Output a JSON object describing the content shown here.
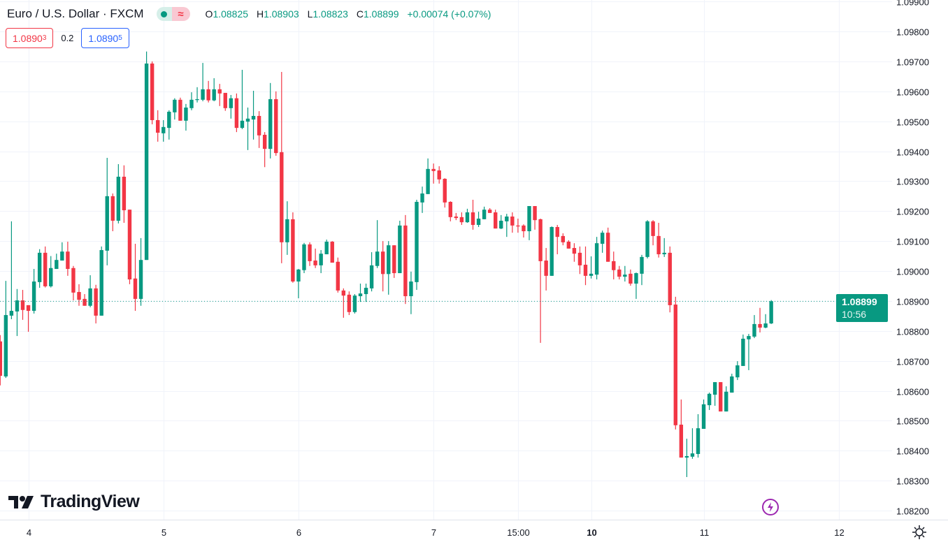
{
  "header": {
    "symbol_title": "Euro / U.S. Dollar · FXCM",
    "market_status": "open",
    "status_icon_2": "≈",
    "ohlc": {
      "o_label": "O",
      "o": "1.08825",
      "h_label": "H",
      "h": "1.08903",
      "l_label": "L",
      "l": "1.08823",
      "c_label": "C",
      "c": "1.08899",
      "change": "+0.00074 (+0.07%)"
    }
  },
  "trade": {
    "sell_main": "1.0890",
    "sell_sup": "3",
    "spread": "0.2",
    "buy_main": "1.0890",
    "buy_sup": "5"
  },
  "price_tag": {
    "price": "1.08899",
    "countdown": "10:56"
  },
  "logo_text": "TradingView",
  "colors": {
    "up": "#089981",
    "down": "#F23645",
    "grid": "#f0f3fa",
    "axis_text": "#131722",
    "buy": "#2962FF",
    "sell": "#F23645",
    "bolt": "#9c27b0"
  },
  "icons": {
    "settings": "gear-icon",
    "lightning": "lightning-icon"
  },
  "chart_data": {
    "type": "candlestick",
    "title": "Euro / U.S. Dollar · FXCM",
    "interval": "1 hour",
    "ylim": [
      1.0817,
      1.0991
    ],
    "y_ticks": [
      "1.08200",
      "1.08300",
      "1.08400",
      "1.08500",
      "1.08600",
      "1.08700",
      "1.08800",
      "1.08900",
      "1.09000",
      "1.09100",
      "1.09200",
      "1.09300",
      "1.09400",
      "1.09500",
      "1.09600",
      "1.09700",
      "1.09800",
      "1.09900"
    ],
    "x_ticks": [
      {
        "label": "4",
        "candle_index": 5,
        "bold": false
      },
      {
        "label": "5",
        "candle_index": 29,
        "bold": false
      },
      {
        "label": "6",
        "candle_index": 53,
        "bold": false
      },
      {
        "label": "7",
        "candle_index": 77,
        "bold": false
      },
      {
        "label": "15:00",
        "candle_index": 92,
        "bold": false
      },
      {
        "label": "10",
        "candle_index": 105,
        "bold": true
      },
      {
        "label": "11",
        "candle_index": 125,
        "bold": false
      },
      {
        "label": "12",
        "candle_index": 149,
        "bold": false
      }
    ],
    "last_price": 1.08899,
    "candles_ohlc": [
      [
        1.08765,
        1.08786,
        1.08618,
        1.0865
      ],
      [
        1.08648,
        1.08967,
        1.08643,
        1.08853
      ],
      [
        1.08851,
        1.09166,
        1.08839,
        1.08867
      ],
      [
        1.08865,
        1.0894,
        1.08783,
        1.08902
      ],
      [
        1.08902,
        1.08937,
        1.08837,
        1.0887
      ],
      [
        1.08886,
        1.08886,
        1.08797,
        1.08867
      ],
      [
        1.08867,
        1.09007,
        1.08858,
        1.08965
      ],
      [
        1.08963,
        1.09073,
        1.08944,
        1.09061
      ],
      [
        1.09061,
        1.09082,
        1.08945,
        1.08949
      ],
      [
        1.08949,
        1.0905,
        1.08945,
        1.0901
      ],
      [
        1.09007,
        1.09058,
        1.09007,
        1.09037
      ],
      [
        1.09035,
        1.09096,
        1.09035,
        1.09065
      ],
      [
        1.09065,
        1.09098,
        1.08984,
        1.09007
      ],
      [
        1.0901,
        1.09017,
        1.08902,
        1.08928
      ],
      [
        1.0893,
        1.08956,
        1.08884,
        1.08904
      ],
      [
        1.08907,
        1.08923,
        1.08884,
        1.08884
      ],
      [
        1.08884,
        1.08986,
        1.08879,
        1.08942
      ],
      [
        1.08942,
        1.08954,
        1.08825,
        1.08851
      ],
      [
        1.08851,
        1.09082,
        1.08851,
        1.0907
      ],
      [
        1.09068,
        1.09378,
        1.09019,
        1.0925
      ],
      [
        1.0925,
        1.09259,
        1.09133,
        1.09168
      ],
      [
        1.09168,
        1.09357,
        1.09159,
        1.09315
      ],
      [
        1.09315,
        1.09353,
        1.09161,
        1.09203
      ],
      [
        1.09205,
        1.09205,
        1.08956,
        1.08972
      ],
      [
        1.08975,
        1.09091,
        1.08867,
        1.08907
      ],
      [
        1.08907,
        1.0911,
        1.08884,
        1.09037
      ],
      [
        1.09037,
        1.09733,
        1.09037,
        1.09693
      ],
      [
        1.09693,
        1.097,
        1.0949,
        1.09504
      ],
      [
        1.09504,
        1.09537,
        1.09432,
        1.09462
      ],
      [
        1.0946,
        1.09504,
        1.09432,
        1.09481
      ],
      [
        1.09478,
        1.09537,
        1.09439,
        1.09532
      ],
      [
        1.0953,
        1.09577,
        1.09506,
        1.09572
      ],
      [
        1.09572,
        1.09579,
        1.09502,
        1.09502
      ],
      [
        1.09502,
        1.09558,
        1.09469,
        1.09546
      ],
      [
        1.09544,
        1.09597,
        1.09537,
        1.09572
      ],
      [
        1.09571,
        1.09614,
        1.09563,
        1.09574
      ],
      [
        1.09572,
        1.09695,
        1.09567,
        1.09607
      ],
      [
        1.09607,
        1.09635,
        1.09563,
        1.0957
      ],
      [
        1.0957,
        1.09644,
        1.09567,
        1.09607
      ],
      [
        1.09607,
        1.09625,
        1.09551,
        1.09593
      ],
      [
        1.09595,
        1.09595,
        1.09535,
        1.09544
      ],
      [
        1.09544,
        1.09588,
        1.09509,
        1.09577
      ],
      [
        1.09577,
        1.09593,
        1.09464,
        1.09478
      ],
      [
        1.09478,
        1.09672,
        1.09474,
        1.09502
      ],
      [
        1.09499,
        1.09546,
        1.09404,
        1.09509
      ],
      [
        1.09506,
        1.09602,
        1.09439,
        1.09518
      ],
      [
        1.09518,
        1.09534,
        1.09411,
        1.09453
      ],
      [
        1.09455,
        1.09464,
        1.09347,
        1.09408
      ],
      [
        1.09408,
        1.09628,
        1.09376,
        1.09574
      ],
      [
        1.09574,
        1.096,
        1.09385,
        1.09394
      ],
      [
        1.09397,
        1.09665,
        1.09026,
        1.09096
      ],
      [
        1.09096,
        1.09233,
        1.09054,
        1.09173
      ],
      [
        1.09173,
        1.09196,
        1.08961,
        1.08965
      ],
      [
        1.08965,
        1.09007,
        1.08909,
        1.09005
      ],
      [
        1.09003,
        1.09094,
        1.08993,
        1.09089
      ],
      [
        1.09089,
        1.09096,
        1.09017,
        1.09033
      ],
      [
        1.09035,
        1.09075,
        1.0901,
        1.09019
      ],
      [
        1.09019,
        1.0907,
        1.08993,
        1.09058
      ],
      [
        1.09056,
        1.09105,
        1.09056,
        1.09098
      ],
      [
        1.09098,
        1.091,
        1.09028,
        1.09028
      ],
      [
        1.09031,
        1.09045,
        1.08928,
        1.08935
      ],
      [
        1.08935,
        1.08942,
        1.08844,
        1.08918
      ],
      [
        1.08921,
        1.08932,
        1.08853,
        1.08863
      ],
      [
        1.08863,
        1.08923,
        1.08858,
        1.08918
      ],
      [
        1.08916,
        1.08958,
        1.08897,
        1.08925
      ],
      [
        1.08923,
        1.08958,
        1.08897,
        1.08944
      ],
      [
        1.08942,
        1.09063,
        1.08932,
        1.09019
      ],
      [
        1.09017,
        1.0917,
        1.0901,
        1.09065
      ],
      [
        1.09065,
        1.091,
        1.08932,
        1.0899
      ],
      [
        1.0899,
        1.091,
        1.08921,
        1.09086
      ],
      [
        1.09086,
        1.09086,
        1.08977,
        1.08993
      ],
      [
        1.08993,
        1.09168,
        1.08993,
        1.09152
      ],
      [
        1.09152,
        1.09187,
        1.0889,
        1.08916
      ],
      [
        1.08916,
        1.08998,
        1.08856,
        1.08965
      ],
      [
        1.08963,
        1.09238,
        1.08937,
        1.09231
      ],
      [
        1.09229,
        1.09282,
        1.09194,
        1.09259
      ],
      [
        1.09257,
        1.09376,
        1.09257,
        1.09341
      ],
      [
        1.09341,
        1.09359,
        1.09292,
        1.09334
      ],
      [
        1.09336,
        1.0935,
        1.09292,
        1.09306
      ],
      [
        1.09308,
        1.0931,
        1.09212,
        1.09229
      ],
      [
        1.09231,
        1.09233,
        1.09166,
        1.0918
      ],
      [
        1.09182,
        1.09194,
        1.0917,
        1.09177
      ],
      [
        1.0918,
        1.09196,
        1.09154,
        1.09163
      ],
      [
        1.09163,
        1.09208,
        1.09161,
        1.09196
      ],
      [
        1.09196,
        1.09238,
        1.09138,
        1.09154
      ],
      [
        1.09154,
        1.09198,
        1.09147,
        1.09175
      ],
      [
        1.09173,
        1.09215,
        1.09173,
        1.09205
      ],
      [
        1.09205,
        1.0921,
        1.09194,
        1.09194
      ],
      [
        1.09196,
        1.09205,
        1.09142,
        1.09142
      ],
      [
        1.09142,
        1.09187,
        1.0914,
        1.09168
      ],
      [
        1.09166,
        1.09191,
        1.09114,
        1.09182
      ],
      [
        1.09182,
        1.09196,
        1.09128,
        1.09152
      ],
      [
        1.09152,
        1.09175,
        1.09128,
        1.09149
      ],
      [
        1.09152,
        1.09156,
        1.09112,
        1.09133
      ],
      [
        1.09133,
        1.09217,
        1.09103,
        1.09217
      ],
      [
        1.09217,
        1.09217,
        1.09138,
        1.0917
      ],
      [
        1.09173,
        1.09175,
        1.0876,
        1.09033
      ],
      [
        1.09035,
        1.09077,
        1.08935,
        1.08984
      ],
      [
        1.08984,
        1.09149,
        1.08984,
        1.09147
      ],
      [
        1.09147,
        1.09154,
        1.09056,
        1.09114
      ],
      [
        1.09117,
        1.09126,
        1.09086,
        1.09096
      ],
      [
        1.09098,
        1.09103,
        1.09075,
        1.09075
      ],
      [
        1.09077,
        1.09093,
        1.09031,
        1.09058
      ],
      [
        1.09061,
        1.09082,
        1.0899,
        1.09019
      ],
      [
        1.09021,
        1.09082,
        1.08953,
        1.08984
      ],
      [
        1.08984,
        1.09049,
        1.08975,
        1.08991
      ],
      [
        1.08988,
        1.09114,
        1.08972,
        1.09093
      ],
      [
        1.09091,
        1.09135,
        1.09061,
        1.09128
      ],
      [
        1.09128,
        1.09145,
        1.09031,
        1.09031
      ],
      [
        1.09033,
        1.09065,
        1.08972,
        1.09003
      ],
      [
        1.09005,
        1.09017,
        1.08972,
        1.08981
      ],
      [
        1.08981,
        1.09017,
        1.08965,
        1.08988
      ],
      [
        1.08991,
        1.09005,
        1.08951,
        1.08958
      ],
      [
        1.08958,
        1.08995,
        1.08907,
        1.08993
      ],
      [
        1.08991,
        1.09054,
        1.08953,
        1.09047
      ],
      [
        1.09047,
        1.0917,
        1.09042,
        1.09166
      ],
      [
        1.09166,
        1.0917,
        1.09086,
        1.09117
      ],
      [
        1.09117,
        1.09161,
        1.09045,
        1.09056
      ],
      [
        1.09056,
        1.0911,
        1.09047,
        1.09061
      ],
      [
        1.09061,
        1.09082,
        1.08862,
        1.08886
      ],
      [
        1.08888,
        1.08914,
        1.08471,
        1.08485
      ],
      [
        1.08487,
        1.08571,
        1.08377,
        1.08377
      ],
      [
        1.08377,
        1.0844,
        1.08312,
        1.08382
      ],
      [
        1.0838,
        1.08475,
        1.08373,
        1.08391
      ],
      [
        1.08389,
        1.08522,
        1.08377,
        1.08475
      ],
      [
        1.08473,
        1.08571,
        1.08473,
        1.08555
      ],
      [
        1.08552,
        1.08594,
        1.08536,
        1.0859
      ],
      [
        1.08587,
        1.08629,
        1.0855,
        1.08629
      ],
      [
        1.08629,
        1.08629,
        1.08531,
        1.08531
      ],
      [
        1.08531,
        1.08615,
        1.08531,
        1.08597
      ],
      [
        1.08594,
        1.08657,
        1.08594,
        1.08648
      ],
      [
        1.08645,
        1.08699,
        1.08636,
        1.08685
      ],
      [
        1.08683,
        1.08788,
        1.08683,
        1.08774
      ],
      [
        1.08772,
        1.0879,
        1.08669,
        1.08783
      ],
      [
        1.08781,
        1.08853,
        1.08776,
        1.08823
      ],
      [
        1.08823,
        1.08877,
        1.08795,
        1.08811
      ],
      [
        1.08811,
        1.08856,
        1.08809,
        1.08825
      ],
      [
        1.08825,
        1.08903,
        1.08823,
        1.08899
      ]
    ]
  }
}
